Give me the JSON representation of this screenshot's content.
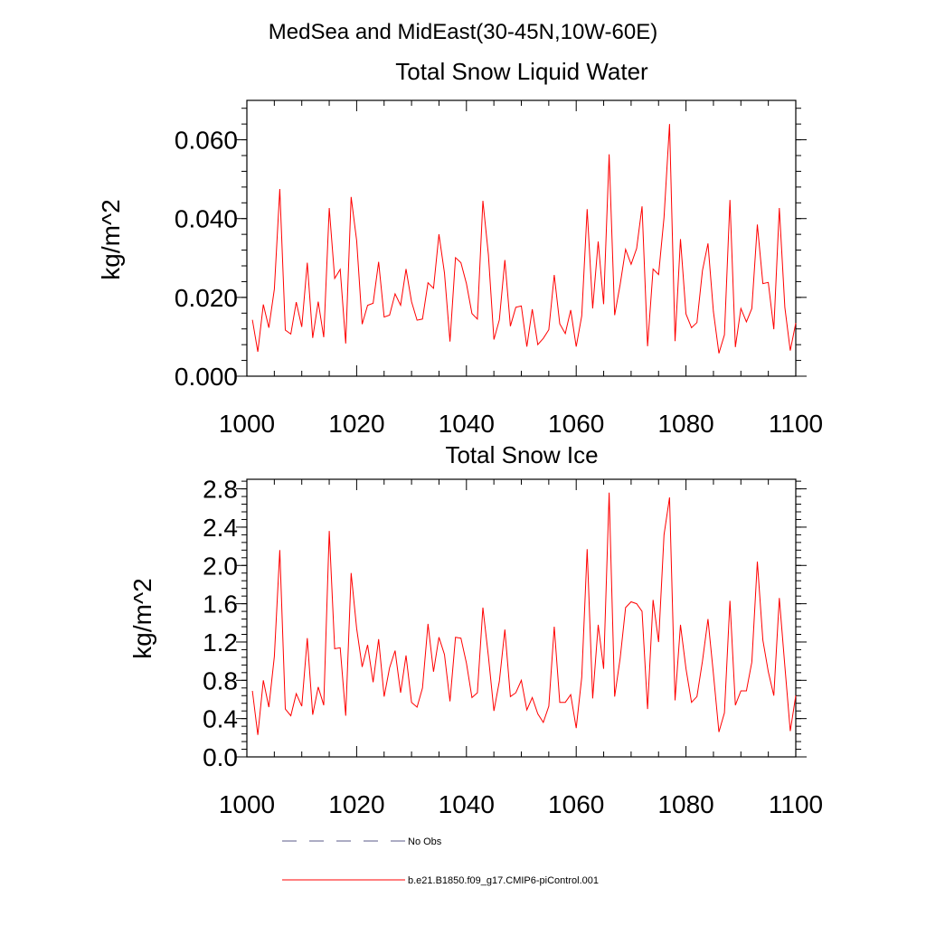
{
  "supertitle": "MedSea and MidEast(30-45N,10W-60E)",
  "legend": [
    {
      "label": "No Obs",
      "color": "#5a5a8a",
      "dash": "dashed"
    },
    {
      "label": "b.e21.B1850.f09_g17.CMIP6-piControl.001",
      "color": "#ff0000",
      "dash": "solid"
    }
  ],
  "chart_data": [
    {
      "type": "line",
      "title": "Total Snow Liquid Water",
      "xlabel": "",
      "ylabel": "kg/m^2",
      "xlim": [
        1000,
        1100
      ],
      "ylim": [
        0,
        0.07
      ],
      "xticks": [
        1000,
        1020,
        1040,
        1060,
        1080,
        1100
      ],
      "xtick_labels": [
        "1000",
        "1020",
        "1040",
        "1060",
        "1080",
        "1100"
      ],
      "yticks": [
        0,
        0.02,
        0.04,
        0.06
      ],
      "ytick_labels": [
        "0.000",
        "0.020",
        "0.040",
        "0.060"
      ],
      "grid": false,
      "series": [
        {
          "name": "b.e21.B1850.f09_g17.CMIP6-piControl.001",
          "color": "#ff0000",
          "x_start": 1001,
          "x_step": 1,
          "values": [
            0.0143,
            0.0062,
            0.0182,
            0.0123,
            0.0221,
            0.0475,
            0.0117,
            0.0107,
            0.0188,
            0.0125,
            0.0288,
            0.0097,
            0.0189,
            0.0099,
            0.0427,
            0.0248,
            0.0271,
            0.0083,
            0.0455,
            0.0344,
            0.0132,
            0.018,
            0.0185,
            0.029,
            0.015,
            0.0155,
            0.0209,
            0.018,
            0.0272,
            0.0189,
            0.0142,
            0.0145,
            0.0237,
            0.0223,
            0.036,
            0.0262,
            0.0088,
            0.0301,
            0.0288,
            0.0235,
            0.0159,
            0.0145,
            0.0445,
            0.0308,
            0.0093,
            0.0143,
            0.0295,
            0.0127,
            0.0175,
            0.0178,
            0.0075,
            0.017,
            0.008,
            0.0096,
            0.0118,
            0.0257,
            0.0133,
            0.0108,
            0.0168,
            0.0075,
            0.0153,
            0.0424,
            0.0172,
            0.0342,
            0.0183,
            0.0563,
            0.0155,
            0.0233,
            0.0322,
            0.0284,
            0.0324,
            0.0431,
            0.0076,
            0.0272,
            0.0258,
            0.0403,
            0.064,
            0.0089,
            0.0348,
            0.0158,
            0.0123,
            0.0136,
            0.0268,
            0.0337,
            0.0164,
            0.0058,
            0.0105,
            0.0447,
            0.0074,
            0.0172,
            0.0138,
            0.0172,
            0.0385,
            0.0235,
            0.0238,
            0.0119,
            0.0427,
            0.0175,
            0.0065,
            0.0135
          ]
        }
      ]
    },
    {
      "type": "line",
      "title": "Total Snow Ice",
      "xlabel": "",
      "ylabel": "kg/m^2",
      "xlim": [
        1000,
        1100
      ],
      "ylim": [
        0,
        2.9
      ],
      "xticks": [
        1000,
        1020,
        1040,
        1060,
        1080,
        1100
      ],
      "xtick_labels": [
        "1000",
        "1020",
        "1040",
        "1060",
        "1080",
        "1100"
      ],
      "yticks": [
        0,
        0.4,
        0.8,
        1.2,
        1.6,
        2.0,
        2.4,
        2.8
      ],
      "ytick_labels": [
        "0.0",
        "0.4",
        "0.8",
        "1.2",
        "1.6",
        "2.0",
        "2.4",
        "2.8"
      ],
      "grid": false,
      "series": [
        {
          "name": "b.e21.B1850.f09_g17.CMIP6-piControl.001",
          "color": "#ff0000",
          "x_start": 1001,
          "x_step": 1,
          "values": [
            0.69,
            0.23,
            0.8,
            0.52,
            1.05,
            2.16,
            0.5,
            0.43,
            0.66,
            0.53,
            1.24,
            0.44,
            0.73,
            0.54,
            2.36,
            1.13,
            1.14,
            0.43,
            1.92,
            1.34,
            0.94,
            1.17,
            0.78,
            1.23,
            0.63,
            0.93,
            1.11,
            0.67,
            1.06,
            0.57,
            0.52,
            0.72,
            1.39,
            0.89,
            1.25,
            1.07,
            0.58,
            1.25,
            1.24,
            0.98,
            0.62,
            0.67,
            1.56,
            1.05,
            0.48,
            0.79,
            1.33,
            0.63,
            0.67,
            0.8,
            0.49,
            0.62,
            0.45,
            0.36,
            0.53,
            1.36,
            0.57,
            0.57,
            0.65,
            0.3,
            0.83,
            2.17,
            0.61,
            1.38,
            0.92,
            2.76,
            0.63,
            1.03,
            1.56,
            1.62,
            1.6,
            1.52,
            0.5,
            1.64,
            1.2,
            2.32,
            2.71,
            0.59,
            1.38,
            0.92,
            0.57,
            0.63,
            1.0,
            1.44,
            0.87,
            0.26,
            0.46,
            1.63,
            0.54,
            0.69,
            0.69,
            0.99,
            2.04,
            1.22,
            0.89,
            0.64,
            1.66,
            0.95,
            0.27,
            0.64
          ]
        }
      ]
    }
  ]
}
